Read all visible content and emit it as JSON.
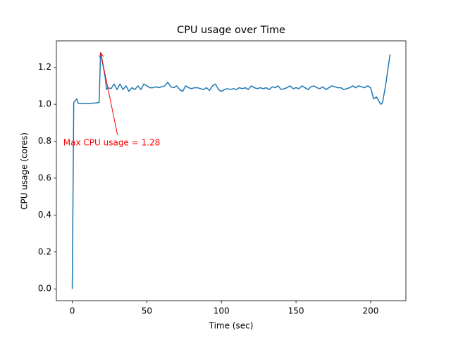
{
  "chart_data": {
    "type": "line",
    "title": "CPU usage over Time",
    "xlabel": "Time (sec)",
    "ylabel": "CPU usage (cores)",
    "x": [
      0,
      1,
      2,
      3,
      4,
      8,
      12,
      16,
      18,
      19,
      20,
      22,
      23,
      24,
      26,
      28,
      30,
      32,
      34,
      36,
      38,
      40,
      42,
      44,
      46,
      48,
      50,
      52,
      54,
      56,
      58,
      60,
      62,
      64,
      66,
      68,
      70,
      72,
      74,
      76,
      78,
      80,
      82,
      84,
      86,
      88,
      90,
      92,
      94,
      96,
      98,
      100,
      102,
      104,
      106,
      108,
      110,
      112,
      114,
      116,
      118,
      120,
      122,
      124,
      126,
      128,
      130,
      132,
      134,
      136,
      138,
      140,
      142,
      144,
      146,
      148,
      150,
      152,
      154,
      156,
      158,
      160,
      162,
      164,
      166,
      168,
      170,
      172,
      174,
      176,
      178,
      180,
      182,
      184,
      186,
      188,
      190,
      192,
      194,
      196,
      198,
      200,
      202,
      204,
      206,
      207,
      208,
      210,
      213
    ],
    "series": [
      {
        "name": "CPU usage",
        "color": "#1f77b4",
        "values": [
          0,
          1.01,
          1.02,
          1.03,
          1.005,
          1.005,
          1.005,
          1.008,
          1.01,
          1.28,
          1.24,
          1.15,
          1.08,
          1.09,
          1.085,
          1.11,
          1.08,
          1.11,
          1.08,
          1.1,
          1.07,
          1.09,
          1.08,
          1.1,
          1.08,
          1.11,
          1.1,
          1.09,
          1.09,
          1.095,
          1.09,
          1.095,
          1.1,
          1.12,
          1.095,
          1.09,
          1.1,
          1.08,
          1.07,
          1.1,
          1.09,
          1.085,
          1.09,
          1.09,
          1.085,
          1.08,
          1.09,
          1.075,
          1.1,
          1.11,
          1.08,
          1.07,
          1.08,
          1.085,
          1.08,
          1.085,
          1.08,
          1.09,
          1.085,
          1.09,
          1.08,
          1.1,
          1.09,
          1.085,
          1.09,
          1.085,
          1.09,
          1.08,
          1.095,
          1.09,
          1.1,
          1.08,
          1.085,
          1.09,
          1.1,
          1.085,
          1.09,
          1.085,
          1.1,
          1.09,
          1.08,
          1.095,
          1.1,
          1.09,
          1.085,
          1.095,
          1.08,
          1.09,
          1.1,
          1.095,
          1.09,
          1.09,
          1.08,
          1.085,
          1.09,
          1.1,
          1.09,
          1.1,
          1.095,
          1.09,
          1.1,
          1.09,
          1.03,
          1.04,
          1.01,
          1.0,
          1.01,
          1.1,
          1.27
        ]
      }
    ],
    "annotation": {
      "text": "Max CPU usage = 1.28",
      "x": 19,
      "y": 1.28,
      "color": "#ff0000"
    },
    "xlim": [
      -10.65,
      223.65
    ],
    "xticks": [
      0,
      50,
      100,
      150,
      200
    ],
    "ylim": [
      -0.064,
      1.344
    ],
    "yticks": [
      {
        "value": 0,
        "label": "0.0"
      },
      0.2,
      0.4,
      0.6,
      0.8,
      {
        "value": 1,
        "label": "1.0"
      },
      1.2
    ]
  }
}
